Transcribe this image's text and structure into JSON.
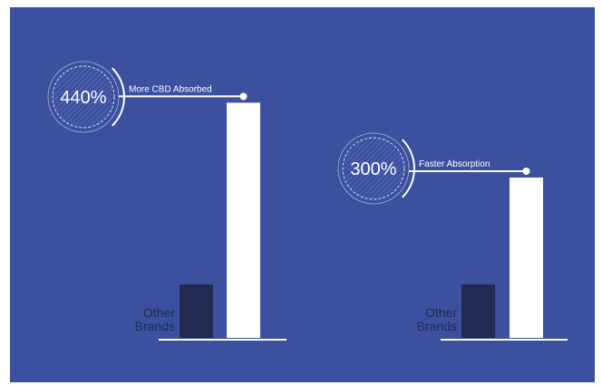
{
  "colors": {
    "background": "#3c50a0",
    "other_brands_bar": "#222a52",
    "product_bar": "#ffffff",
    "label_text": "#1e2a55"
  },
  "chart_data": [
    {
      "type": "bar",
      "categories": [
        "Other Brands",
        ""
      ],
      "values": [
        100,
        440
      ],
      "badge_label": "440%",
      "callout_label": "More CBD Absorbed",
      "other_brands_label": [
        "Other",
        "Brands"
      ]
    },
    {
      "type": "bar",
      "categories": [
        "Other Brands",
        ""
      ],
      "values": [
        100,
        300
      ],
      "badge_label": "300%",
      "callout_label": "Faster Absorption",
      "other_brands_label": [
        "Other",
        "Brands"
      ]
    }
  ]
}
